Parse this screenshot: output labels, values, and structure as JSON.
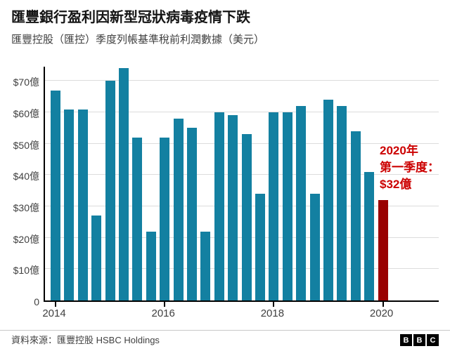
{
  "header": {
    "title": "匯豐銀行盈利因新型冠狀病毒疫情下跌",
    "subtitle": "匯豐控股（匯控）季度列帳基準稅前利潤數據（美元）"
  },
  "chart_data": {
    "type": "bar",
    "title": "匯豐銀行盈利因新型冠狀病毒疫情下跌",
    "subtitle": "匯豐控股（匯控）季度列帳基準稅前利潤數據（美元）",
    "unit": "億美元",
    "x": [
      "2014 Q1",
      "2014 Q2",
      "2014 Q3",
      "2014 Q4",
      "2015 Q1",
      "2015 Q2",
      "2015 Q3",
      "2015 Q4",
      "2016 Q1",
      "2016 Q2",
      "2016 Q3",
      "2016 Q4",
      "2017 Q1",
      "2017 Q2",
      "2017 Q3",
      "2017 Q4",
      "2018 Q1",
      "2018 Q2",
      "2018 Q3",
      "2018 Q4",
      "2019 Q1",
      "2019 Q2",
      "2019 Q3",
      "2019 Q4",
      "2020 Q1"
    ],
    "values": [
      67,
      61,
      61,
      27,
      70,
      74,
      52,
      22,
      52,
      58,
      55,
      22,
      60,
      59,
      53,
      34,
      60,
      60,
      62,
      34,
      64,
      62,
      54,
      41,
      32
    ],
    "ylim": [
      0,
      75
    ],
    "yticks": [
      {
        "v": 0,
        "label": "0"
      },
      {
        "v": 10,
        "label": "$10億"
      },
      {
        "v": 20,
        "label": "$20億"
      },
      {
        "v": 30,
        "label": "$30億"
      },
      {
        "v": 40,
        "label": "$40億"
      },
      {
        "v": 50,
        "label": "$50億"
      },
      {
        "v": 60,
        "label": "$60億"
      },
      {
        "v": 70,
        "label": "$70億"
      }
    ],
    "xticks": [
      {
        "index": 0,
        "label": "2014"
      },
      {
        "index": 8,
        "label": "2016"
      },
      {
        "index": 16,
        "label": "2018"
      },
      {
        "index": 24,
        "label": "2020"
      }
    ],
    "grid": true,
    "legend": "none",
    "bar_color": "#1380A1",
    "highlight_index": 24,
    "highlight_color": "#990000",
    "annotation": {
      "lines": [
        "2020年",
        "第一季度：",
        "$32億"
      ],
      "color": "#cc0000"
    }
  },
  "footer": {
    "source": "資料來源：匯豐控股 HSBC Holdings",
    "logo_letters": [
      "B",
      "B",
      "C"
    ]
  }
}
